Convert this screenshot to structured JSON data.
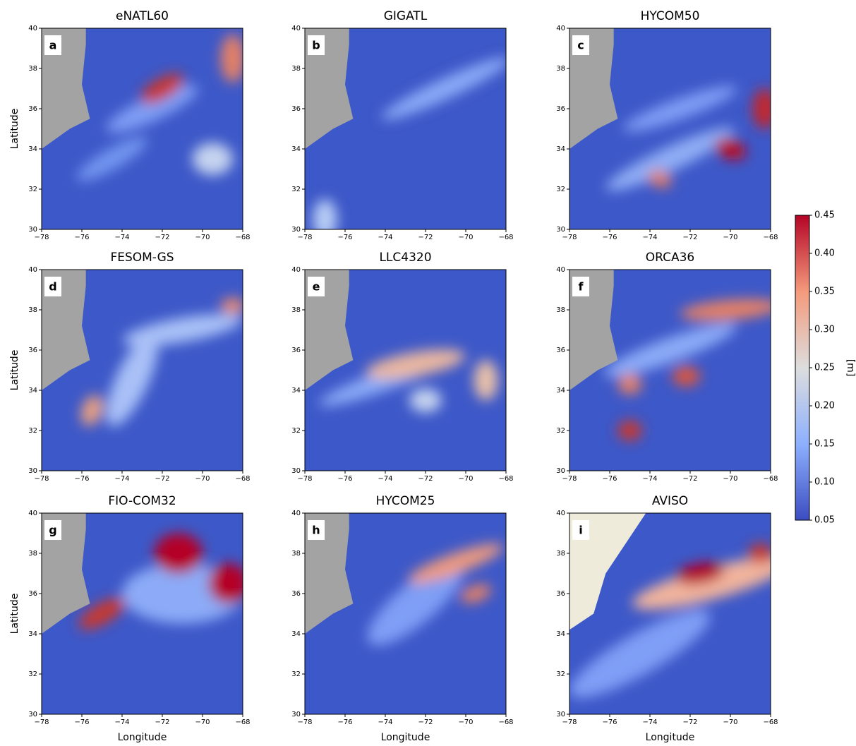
{
  "chart_data": [
    {
      "type": "map",
      "title": "eNATL60",
      "panel_label": "a",
      "ylabel": "Latitude",
      "xlim": [
        -78,
        -68
      ],
      "ylim": [
        30,
        40
      ],
      "xticks": [
        {
          "value": -78,
          "label": "−78"
        },
        {
          "value": -76,
          "label": "−76"
        },
        {
          "value": -74,
          "label": "−74"
        },
        {
          "value": -72,
          "label": "−72"
        },
        {
          "value": -70,
          "label": "−70"
        },
        {
          "value": -68,
          "label": "−68"
        }
      ],
      "yticks": [
        30,
        32,
        34,
        36,
        38,
        40
      ]
    },
    {
      "type": "map",
      "title": "GIGATL",
      "panel_label": "b",
      "xlim": [
        -78,
        -68
      ],
      "ylim": [
        30,
        40
      ],
      "xticks": [
        {
          "value": -78,
          "label": "−78"
        },
        {
          "value": -76,
          "label": "−76"
        },
        {
          "value": -74,
          "label": "−74"
        },
        {
          "value": -72,
          "label": "−72"
        },
        {
          "value": -70,
          "label": "−70"
        },
        {
          "value": -68,
          "label": "−68"
        }
      ],
      "yticks": [
        30,
        32,
        34,
        36,
        38,
        40
      ]
    },
    {
      "type": "map",
      "title": "HYCOM50",
      "panel_label": "c",
      "xlim": [
        -78,
        -68
      ],
      "ylim": [
        30,
        40
      ],
      "xticks": [
        {
          "value": -78,
          "label": "−78"
        },
        {
          "value": -76,
          "label": "−76"
        },
        {
          "value": -74,
          "label": "−74"
        },
        {
          "value": -72,
          "label": "−72"
        },
        {
          "value": -70,
          "label": "−70"
        },
        {
          "value": -68,
          "label": "−68"
        }
      ],
      "yticks": [
        30,
        32,
        34,
        36,
        38,
        40
      ]
    },
    {
      "type": "map",
      "title": "FESOM-GS",
      "panel_label": "d",
      "ylabel": "Latitude",
      "xlim": [
        -78,
        -68
      ],
      "ylim": [
        30,
        40
      ],
      "xticks": [
        {
          "value": -78,
          "label": "−78"
        },
        {
          "value": -76,
          "label": "−76"
        },
        {
          "value": -74,
          "label": "−74"
        },
        {
          "value": -72,
          "label": "−72"
        },
        {
          "value": -70,
          "label": "−70"
        },
        {
          "value": -68,
          "label": "−68"
        }
      ],
      "yticks": [
        30,
        32,
        34,
        36,
        38,
        40
      ]
    },
    {
      "type": "map",
      "title": "LLC4320",
      "panel_label": "e",
      "xlim": [
        -78,
        -68
      ],
      "ylim": [
        30,
        40
      ],
      "xticks": [
        {
          "value": -78,
          "label": "−78"
        },
        {
          "value": -76,
          "label": "−76"
        },
        {
          "value": -74,
          "label": "−74"
        },
        {
          "value": -72,
          "label": "−72"
        },
        {
          "value": -70,
          "label": "−70"
        },
        {
          "value": -68,
          "label": "−68"
        }
      ],
      "yticks": [
        30,
        32,
        34,
        36,
        38,
        40
      ]
    },
    {
      "type": "map",
      "title": "ORCA36",
      "panel_label": "f",
      "xlim": [
        -78,
        -68
      ],
      "ylim": [
        30,
        40
      ],
      "xticks": [
        {
          "value": -78,
          "label": "−78"
        },
        {
          "value": -76,
          "label": "−76"
        },
        {
          "value": -74,
          "label": "−74"
        },
        {
          "value": -72,
          "label": "−72"
        },
        {
          "value": -70,
          "label": "−70"
        },
        {
          "value": -68,
          "label": "−68"
        }
      ],
      "yticks": [
        30,
        32,
        34,
        36,
        38,
        40
      ]
    },
    {
      "type": "map",
      "title": "FIO-COM32",
      "panel_label": "g",
      "ylabel": "Latitude",
      "xlabel": "Longitude",
      "xlim": [
        -78,
        -68
      ],
      "ylim": [
        30,
        40
      ],
      "xticks": [
        {
          "value": -78,
          "label": "−78"
        },
        {
          "value": -76,
          "label": "−76"
        },
        {
          "value": -74,
          "label": "−74"
        },
        {
          "value": -72,
          "label": "−72"
        },
        {
          "value": -70,
          "label": "−70"
        },
        {
          "value": -68,
          "label": "−68"
        }
      ],
      "yticks": [
        30,
        32,
        34,
        36,
        38,
        40
      ]
    },
    {
      "type": "map",
      "title": "HYCOM25",
      "panel_label": "h",
      "xlabel": "Longitude",
      "xlim": [
        -78,
        -68
      ],
      "ylim": [
        30,
        40
      ],
      "xticks": [
        {
          "value": -78,
          "label": "−78"
        },
        {
          "value": -76,
          "label": "−76"
        },
        {
          "value": -74,
          "label": "−74"
        },
        {
          "value": -72,
          "label": "−72"
        },
        {
          "value": -70,
          "label": "−70"
        },
        {
          "value": -68,
          "label": "−68"
        }
      ],
      "yticks": [
        30,
        32,
        34,
        36,
        38,
        40
      ]
    },
    {
      "type": "map",
      "title": "AVISO",
      "panel_label": "i",
      "xlabel": "Longitude",
      "xlim": [
        -78,
        -68
      ],
      "ylim": [
        30,
        40
      ],
      "xticks": [
        {
          "value": -78,
          "label": "−78"
        },
        {
          "value": -76,
          "label": "−76"
        },
        {
          "value": -74,
          "label": "−74"
        },
        {
          "value": -72,
          "label": "−72"
        },
        {
          "value": -70,
          "label": "−70"
        },
        {
          "value": -68,
          "label": "−68"
        }
      ],
      "yticks": [
        30,
        32,
        34,
        36,
        38,
        40
      ]
    },
    {
      "type": "colorbar",
      "ylabel": "[m]",
      "ylim": [
        0.05,
        0.45
      ],
      "colors": [
        "#3b4cc0",
        "#8db0fe",
        "#dddddd",
        "#f49a7b",
        "#b40426"
      ],
      "yticks": [
        {
          "value": 0.05,
          "label": "0.05"
        },
        {
          "value": 0.1,
          "label": "0.10"
        },
        {
          "value": 0.15,
          "label": "0.15"
        },
        {
          "value": 0.2,
          "label": "0.20"
        },
        {
          "value": 0.25,
          "label": "0.25"
        },
        {
          "value": 0.3,
          "label": "0.30"
        },
        {
          "value": 0.35,
          "label": "0.35"
        },
        {
          "value": 0.4,
          "label": "0.40"
        },
        {
          "value": 0.45,
          "label": "0.45"
        }
      ]
    }
  ]
}
